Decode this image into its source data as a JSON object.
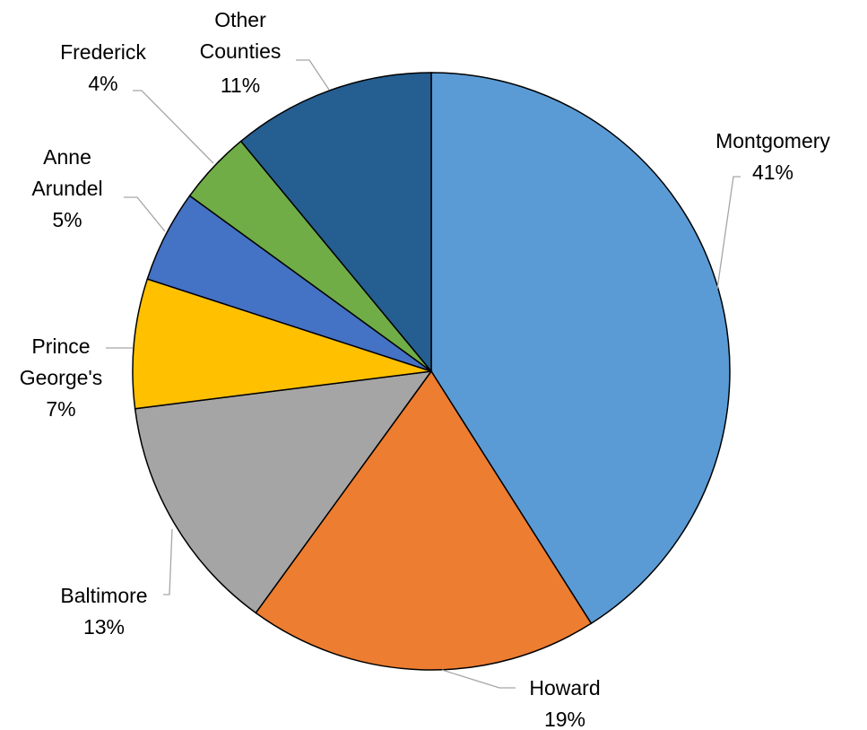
{
  "chart_data": {
    "type": "pie",
    "title": "",
    "start_angle_deg": 0,
    "direction": "clockwise",
    "legend": "none",
    "slices": [
      {
        "name": "Montgomery",
        "value": 41,
        "label": "41%",
        "color": "#5b9bd5"
      },
      {
        "name": "Howard",
        "value": 19,
        "label": "19%",
        "color": "#ed7d31"
      },
      {
        "name": "Baltimore",
        "value": 13,
        "label": "13%",
        "color": "#a5a5a5"
      },
      {
        "name": "Prince George's",
        "value": 7,
        "label": "7%",
        "color": "#ffc000"
      },
      {
        "name": "Anne Arundel",
        "value": 5,
        "label": "5%",
        "color": "#4472c4"
      },
      {
        "name": "Frederick",
        "value": 4,
        "label": "4%",
        "color": "#70ad47"
      },
      {
        "name": "Other Counties",
        "value": 11,
        "label": "11%",
        "color": "#255e91"
      }
    ]
  }
}
